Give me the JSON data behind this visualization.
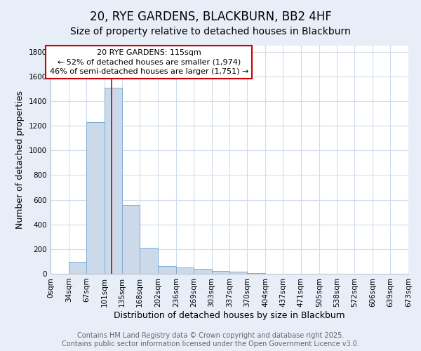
{
  "title": "20, RYE GARDENS, BLACKBURN, BB2 4HF",
  "subtitle": "Size of property relative to detached houses in Blackburn",
  "xlabel": "Distribution of detached houses by size in Blackburn",
  "ylabel": "Number of detached properties",
  "bin_edges": [
    0,
    34,
    67,
    101,
    135,
    168,
    202,
    236,
    269,
    303,
    337,
    370,
    404,
    437,
    471,
    505,
    538,
    572,
    606,
    639,
    673
  ],
  "bar_heights": [
    0,
    95,
    1230,
    1510,
    560,
    210,
    65,
    50,
    38,
    22,
    15,
    5,
    0,
    0,
    0,
    0,
    0,
    0,
    0,
    0
  ],
  "bar_color": "#ccd9ea",
  "bar_edge_color": "#7daed4",
  "property_size": 115,
  "annotation_label": "20 RYE GARDENS: 115sqm",
  "annotation_line1": "← 52% of detached houses are smaller (1,974)",
  "annotation_line2": "46% of semi-detached houses are larger (1,751) →",
  "vline_color": "#cc0000",
  "annotation_box_facecolor": "#ffffff",
  "annotation_box_edgecolor": "#cc0000",
  "ylim": [
    0,
    1850
  ],
  "yticks": [
    0,
    200,
    400,
    600,
    800,
    1000,
    1200,
    1400,
    1600,
    1800
  ],
  "plot_bg_color": "#ffffff",
  "fig_bg_color": "#e8eef8",
  "grid_color": "#d0dcea",
  "footer_line1": "Contains HM Land Registry data © Crown copyright and database right 2025.",
  "footer_line2": "Contains public sector information licensed under the Open Government Licence v3.0.",
  "title_fontsize": 12,
  "subtitle_fontsize": 10,
  "axis_label_fontsize": 9,
  "tick_fontsize": 7.5,
  "annotation_fontsize": 8,
  "footer_fontsize": 7
}
